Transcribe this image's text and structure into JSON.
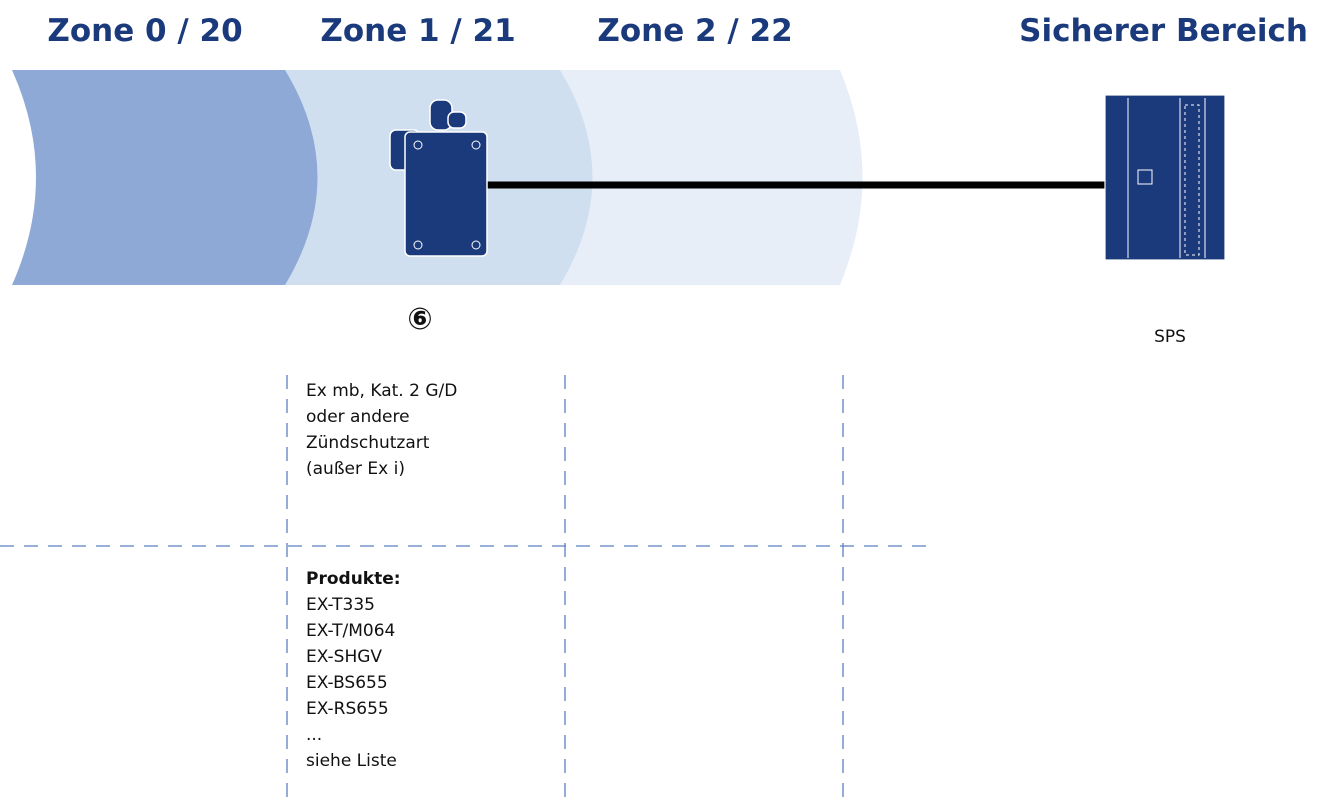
{
  "zones": [
    {
      "title": "Zone 0 / 20"
    },
    {
      "title": "Zone 1 / 21"
    },
    {
      "title": "Zone 2 / 22"
    },
    {
      "title": "Sicherer Bereich"
    }
  ],
  "device": {
    "marker": "⑥"
  },
  "controller": {
    "label": "SPS"
  },
  "description": {
    "lines": [
      "Ex mb, Kat. 2 G/D",
      "oder andere",
      "Zündschutzart",
      "(außer Ex i)"
    ]
  },
  "products": {
    "heading": "Produkte:",
    "items": [
      "EX-T335",
      "EX-T/M064",
      "EX-SHGV",
      "EX-BS655",
      "EX-RS655",
      "...",
      "siehe Liste"
    ]
  }
}
